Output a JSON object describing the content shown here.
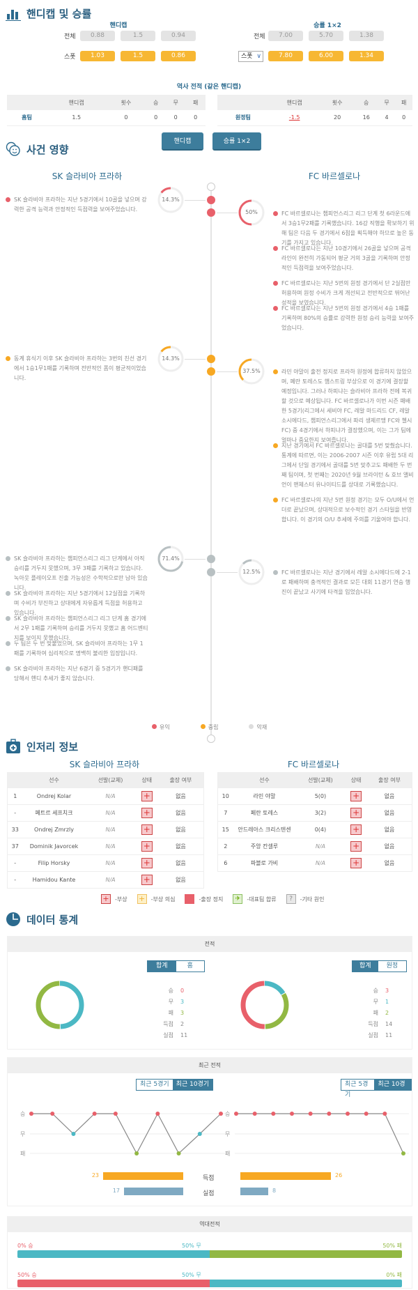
{
  "colors": {
    "accent": "#3d7d9c",
    "win": "#e8606a",
    "draw": "#4bb8c4",
    "loss": "#92b843",
    "favorable": "#e8606a",
    "neutral": "#f7a823",
    "unfavorable": "#b8c0c2",
    "spot": "#f7b733"
  },
  "odds": {
    "title": "핸디캡 및 승률",
    "handicap": {
      "header": "핸디캡",
      "row_all_label": "전체",
      "all": [
        "0.88",
        "1.5",
        "0.94"
      ],
      "row_spot_label": "스폿",
      "spot": [
        "1.03",
        "1.5",
        "0.86"
      ]
    },
    "winrate": {
      "header": "승률 1×2",
      "row_all_label": "전체",
      "all": [
        "7.00",
        "5.70",
        "1.38"
      ],
      "select_value": "스폿",
      "spot": [
        "7.80",
        "6.00",
        "1.34"
      ]
    },
    "history_title": "역사 전적 (같은 핸디캡)",
    "history_columns": [
      "",
      "핸디캡",
      "횟수",
      "승",
      "무",
      "패"
    ],
    "home_row": [
      "홈팀",
      "1.5",
      "0",
      "0",
      "0",
      "0"
    ],
    "away_row": [
      "원정팀",
      "-1.5",
      "20",
      "16",
      "4",
      "0"
    ],
    "buttons": [
      "핸디캡",
      "승률 1×2"
    ]
  },
  "events": {
    "title": "사건 영향",
    "home_team": "SK 슬라비아 프라하",
    "away_team": "FC 바르셀로나",
    "groups": [
      {
        "type": "favorable",
        "home_pct": "14.3%",
        "home_value": 14.3,
        "away_pct": "50%",
        "away_value": 50,
        "home_items": [
          "SK 슬라비아 프라하는 지난 5경기에서 10골을 넣으며 강력한 공격 능력과 안정적인 득점력을 보여주었습니다."
        ],
        "away_items": [
          "FC 바르셀로나는 챔피언스리그 리그 단계 첫 6라운드에서 3승1무2패를 기록했습니다. 16강 직행을 확보하기 위해 팀은 다음 두 경기에서 6점을 획득해야 하므로 높은 동기를 가지고 있습니다.",
          "FC 바르셀로나는 지난 10경기에서 26골을 넣으며 공격 라인이 완전히 가동되어 평균 거의 3골을 기록하며 안정적인 득점력을 보여주었습니다.",
          "FC 바르셀로나는 지난 5번의 원정 경기에서 단 2실점만 허용하며 원정 수비가 크게 개선되고 전반적으로 뛰어난 성적을 보였습니다.",
          "FC 바르셀로나는 지난 5번의 원정 경기에서 4승 1패를 기록하며 80%의 승률로 강력한 원정 승리 능력을 보여주었습니다."
        ]
      },
      {
        "type": "neutral",
        "home_pct": "14.3%",
        "home_value": 14.3,
        "away_pct": "37.5%",
        "away_value": 37.5,
        "home_items": [
          "동계 휴식기 이후 SK 슬라비아 프라하는 3번의 친선 경기에서 1승1무1패를 기록하며 전반적인 폼이 평균적이었습니다."
        ],
        "away_items": [
          "라민 야말이 출전 정지로 프라하 원정에 합류하지 않았으며, 페란 토레스도 햄스트링 부상으로 이 경기에 결장할 예정입니다. 그러나 하피냐는 슬라비아 프라하 전에 복귀할 것으로 예상됩니다. FC 바르셀로나가 이번 시즌 패배한 5경기(리그에서 세비야 FC, 레알 마드리드 CF, 레알 소시에다드, 챔피언스리그에서 파리 생제르맹 FC와 첼시 FC) 중 4경기에서 하피냐가 결장했으며, 이는 그가 팀에 얼마나 중요한지 보여줍니다.",
          "지난 경기에서 FC 바르셀로나는 골대를 5번 맞췄습니다. 통계에 따르면, 이는 2006-2007 시즌 이후 유럽 5대 리그에서 단일 경기에서 골대를 5번 맞추고도 패배한 두 번째 팀이며, 첫 번째는 2020년 9월 브라이턴 & 호브 앨비언이 맨체스터 유나이티드를 상대로 기록했습니다.",
          "FC 바르셀로나의 지난 5번 원정 경기는 모두 O/U에서 언더로 끝났으며, 상대적으로 보수적인 경기 스타일을 반영합니다. 이 경기의 O/U 추세에 주의를 기울여야 합니다."
        ]
      },
      {
        "type": "unfavorable",
        "home_pct": "71.4%",
        "home_value": 71.4,
        "away_pct": "12.5%",
        "away_value": 12.5,
        "home_items": [
          "SK 슬라비아 프라하는 챔피언스리그 리그 단계에서 아직 승리를 거두지 못했으며, 3무 3패를 기록하고 있습니다. 녹아웃 플레이오프 진출 가능성은 수학적으로만 남아 있습니다.",
          "SK 슬라비아 프라하는 지난 5경기에서 12실점을 기록하며 수비가 부진하고 상대에게 자유롭게 득점을 허용하고 있습니다.",
          "SK 슬라비아 프라하는 챔피언스리그 리그 단계 홈 경기에서 2무 1패를 기록하며 승리를 거두지 못했고 홈 어드벤티지를 보이지 못했습니다.",
          "두 팀은 두 번 맞붙었으며, SK 슬라비아 프라하는 1무 1패를 기록하여 심리적으로 명백히 불리한 입장입니다.",
          "SK 슬라비아 프라하는 지난 6경기 중 5경기가 핸디패를 당해서 핸디 추세가 좋지 않습니다."
        ],
        "away_items": [
          "FC 바르셀로나는 지난 경기에서 레알 소시에다드에 2-1로 패배하며 충격적인 결과로 모든 대회 11경기 연승 행진이 끝났고 사기에 타격을 입었습니다."
        ]
      }
    ],
    "legend": [
      "유익",
      "중립",
      "악재"
    ]
  },
  "injury": {
    "title": "인저리 정보",
    "columns": [
      "선수",
      "선발(교체)",
      "상태",
      "출장 여부"
    ],
    "home_team": "SK 슬라비아 프라하",
    "away_team": "FC 바르셀로나",
    "home_rows": [
      [
        "1",
        "Ondrej Kolar",
        "N/A",
        "없음"
      ],
      [
        "-",
        "페트르 세프치크",
        "N/A",
        "없음"
      ],
      [
        "33",
        "Ondrej Zmrzly",
        "N/A",
        "없음"
      ],
      [
        "37",
        "Dominik Javorcek",
        "N/A",
        "없음"
      ],
      [
        "-",
        "Filip Horsky",
        "N/A",
        "없음"
      ],
      [
        "-",
        "Hamidou Kante",
        "N/A",
        "없음"
      ]
    ],
    "away_rows": [
      [
        "10",
        "라민 야말",
        "5(0)",
        "없음"
      ],
      [
        "7",
        "페란 토레스",
        "3(2)",
        "없음"
      ],
      [
        "15",
        "안드레아스 크리스텐센",
        "0(4)",
        "없음"
      ],
      [
        "2",
        "주앙 칸셀루",
        "N/A",
        "없음"
      ],
      [
        "6",
        "파블로 가비",
        "N/A",
        "없음"
      ]
    ],
    "legend": [
      "-부상",
      "-부상 의심",
      "-출장 정지",
      "-대표팀 합류",
      "-기타 원인"
    ]
  },
  "stats": {
    "title": "데이터 통계",
    "record": {
      "header": "전적",
      "home": {
        "toggle": [
          "합계",
          "홈"
        ],
        "labels": [
          "승",
          "무",
          "패",
          "득점",
          "실점"
        ],
        "values": [
          "0",
          "3",
          "3",
          "2",
          "11"
        ]
      },
      "away": {
        "toggle": [
          "합계",
          "원정"
        ],
        "labels": [
          "승",
          "무",
          "패",
          "득점",
          "실점"
        ],
        "values": [
          "3",
          "1",
          "2",
          "14",
          "11"
        ]
      }
    },
    "recent": {
      "header": "최근 전적",
      "toggle": [
        "최근 5경기",
        "최근 10경기"
      ],
      "y_labels": [
        "승",
        "무",
        "패"
      ],
      "home_results": [
        "W",
        "W",
        "D",
        "W",
        "W",
        "L",
        "W",
        "L",
        "D",
        "W"
      ],
      "away_results": [
        "W",
        "W",
        "W",
        "W",
        "W",
        "W",
        "W",
        "W",
        "W",
        "L"
      ],
      "goals_label": "득점",
      "conceded_label": "실점",
      "home_goals": 23,
      "home_conceded": 17,
      "away_goals": 26,
      "away_conceded": 8
    },
    "h2h": {
      "header": "역대전적",
      "rows": [
        {
          "win": "0% 승",
          "draw": "50% 무",
          "loss": "50% 패",
          "w": 0,
          "d": 50,
          "l": 50
        },
        {
          "win": "50% 승",
          "draw": "50% 무",
          "loss": "0% 패",
          "w": 50,
          "d": 50,
          "l": 0
        }
      ]
    }
  }
}
